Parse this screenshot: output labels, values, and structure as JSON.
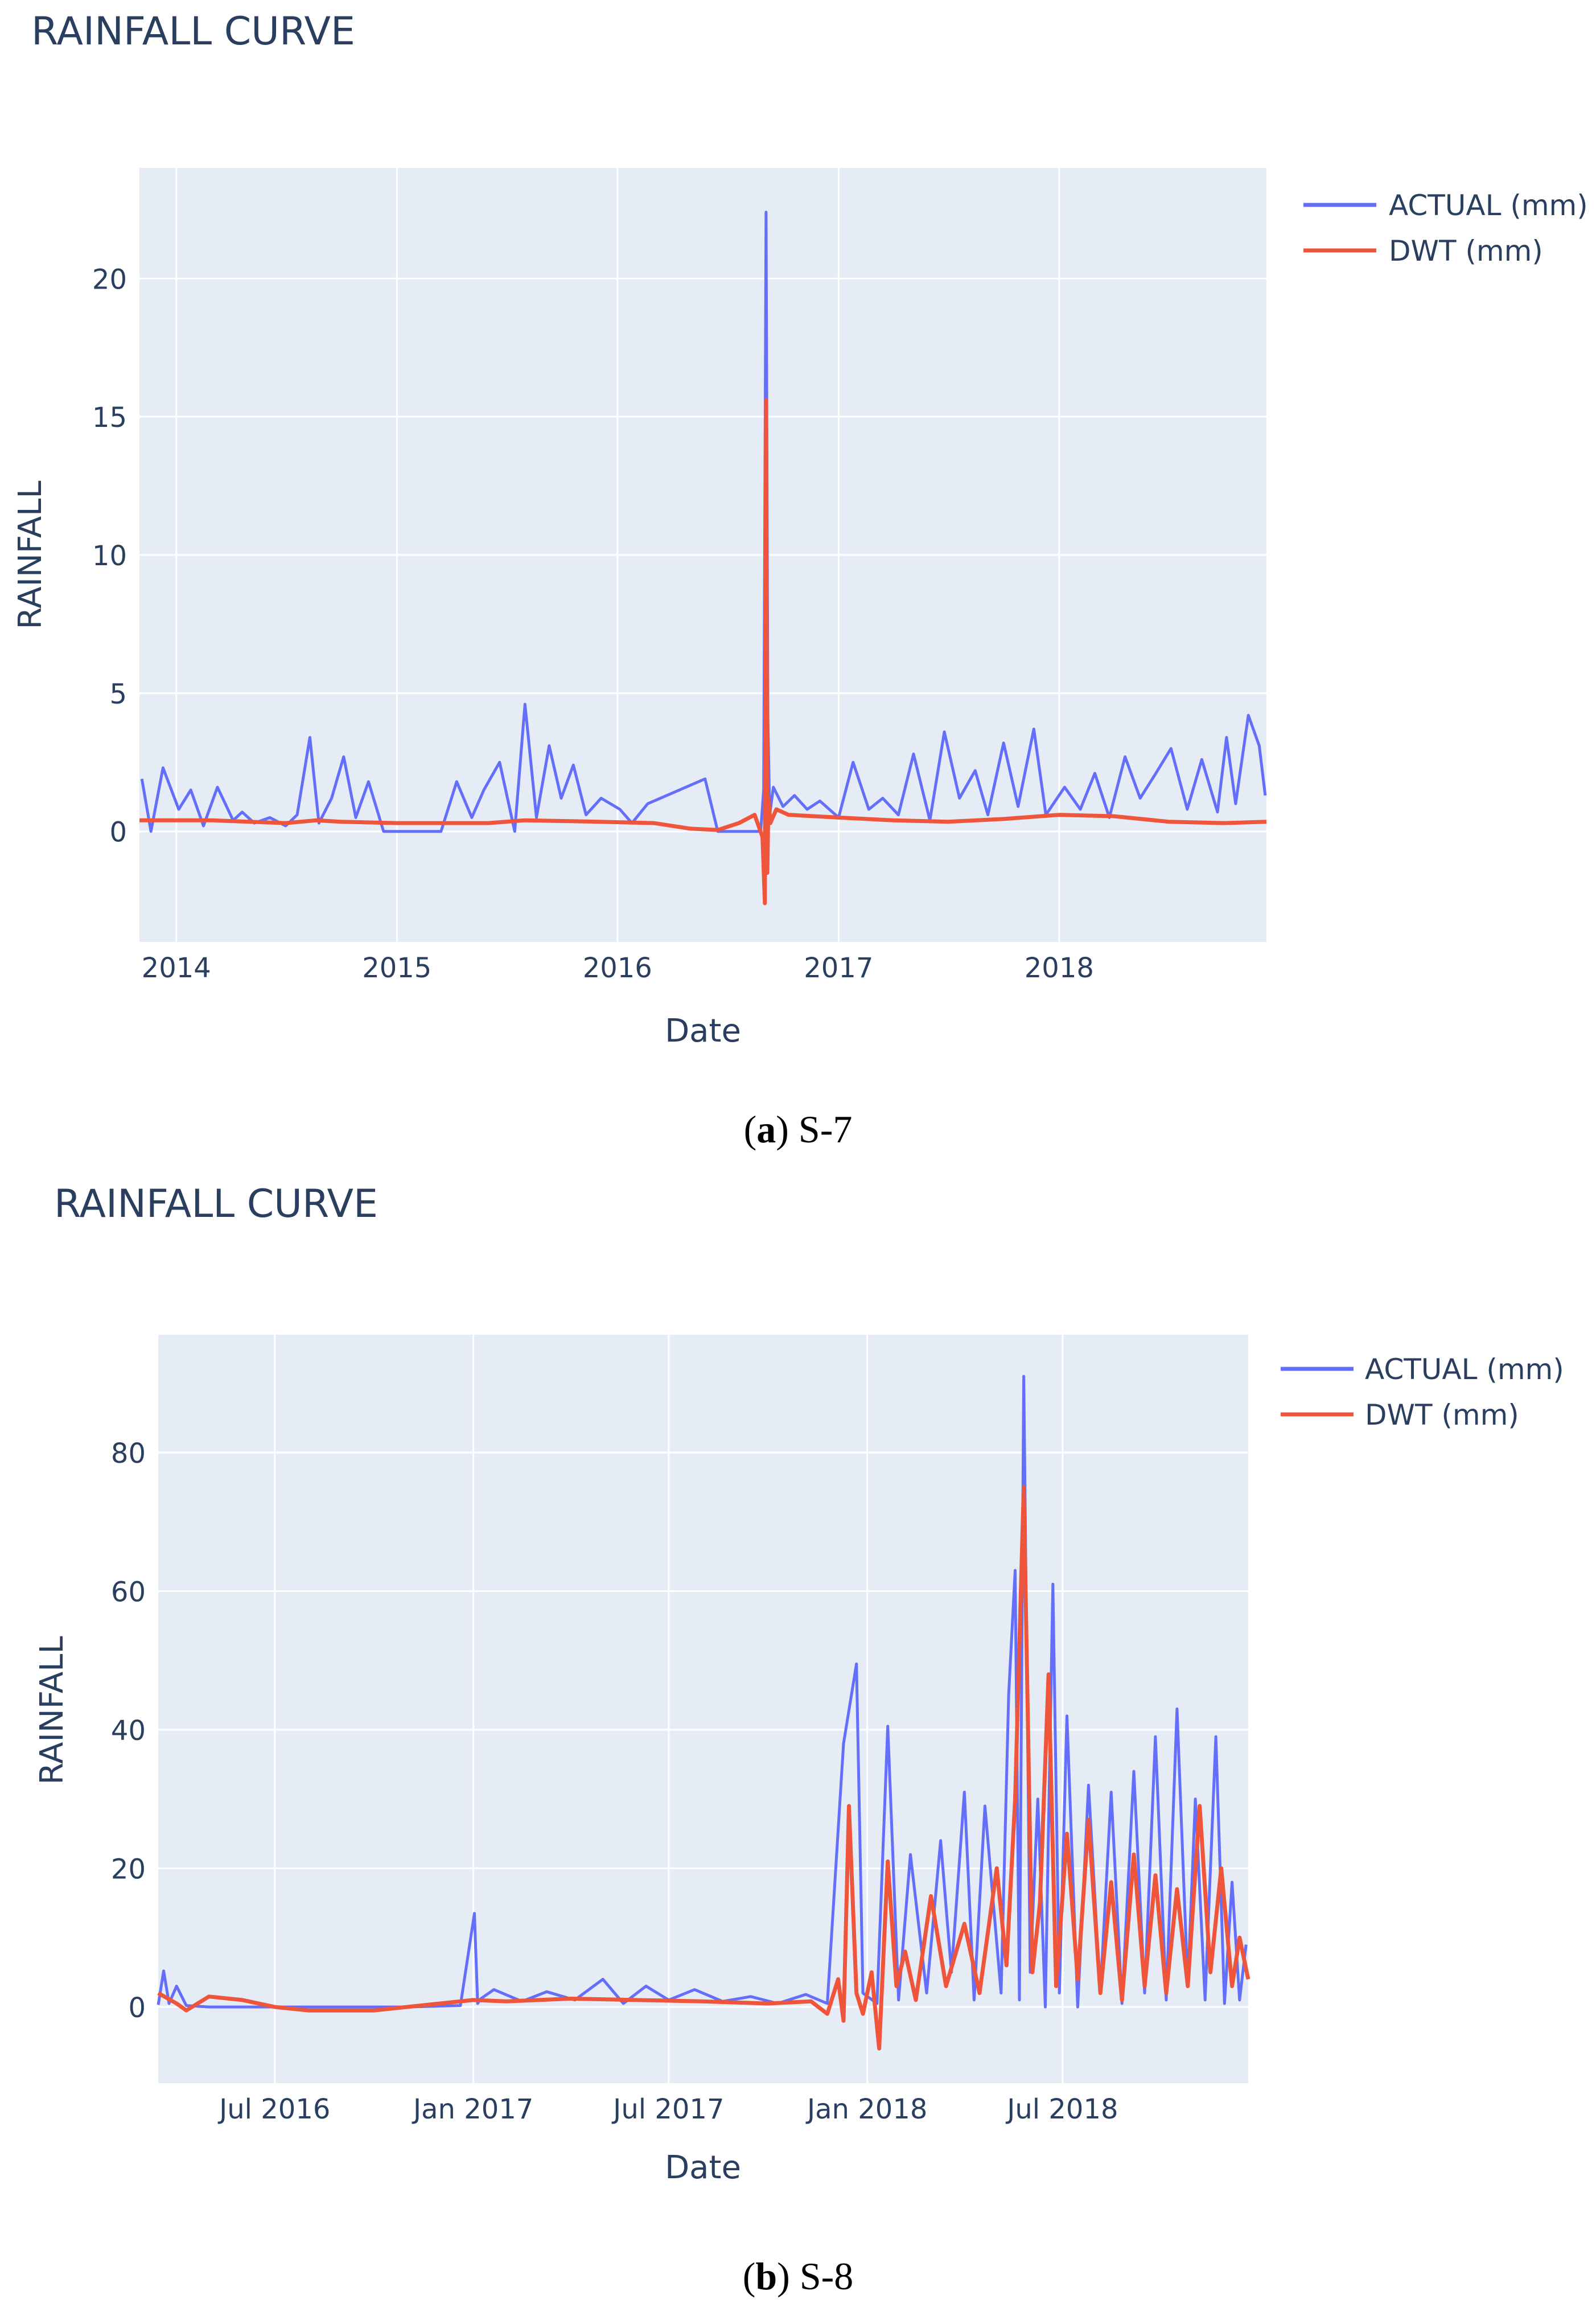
{
  "colors": {
    "actual": "#636efa",
    "dwt": "#ef553b",
    "plot_bg": "#e5ecf6",
    "grid": "#ffffff",
    "text": "#2a3f5f"
  },
  "captions": [
    {
      "letter": "a",
      "label": "S-7"
    },
    {
      "letter": "b",
      "label": "S-8"
    }
  ],
  "chart_data": [
    {
      "type": "line",
      "title": "RAINFALL CURVE",
      "xlabel": "Date",
      "ylabel": "RAINFALL",
      "xlim": [
        "2013-11-01",
        "2018-12-10"
      ],
      "ylim": [
        -4,
        24
      ],
      "x_ticks": [
        {
          "date": "2014-01-01",
          "label": "2014"
        },
        {
          "date": "2015-01-01",
          "label": "2015"
        },
        {
          "date": "2016-01-01",
          "label": "2016"
        },
        {
          "date": "2017-01-01",
          "label": "2017"
        },
        {
          "date": "2018-01-01",
          "label": "2018"
        }
      ],
      "y_ticks": [
        0,
        5,
        10,
        15,
        20
      ],
      "legend": {
        "position": "top-right",
        "entries": [
          "ACTUAL (mm)",
          "DWT (mm)"
        ]
      },
      "series": [
        {
          "name": "ACTUAL (mm)",
          "x": [
            "2013-11-05",
            "2013-11-20",
            "2013-12-10",
            "2014-01-05",
            "2014-01-25",
            "2014-02-15",
            "2014-03-10",
            "2014-04-05",
            "2014-04-20",
            "2014-05-10",
            "2014-06-05",
            "2014-07-01",
            "2014-07-20",
            "2014-08-10",
            "2014-08-25",
            "2014-09-15",
            "2014-10-05",
            "2014-10-25",
            "2014-11-15",
            "2014-12-10",
            "2015-01-20",
            "2015-02-20",
            "2015-03-15",
            "2015-04-10",
            "2015-05-05",
            "2015-05-25",
            "2015-06-20",
            "2015-07-15",
            "2015-08-01",
            "2015-08-20",
            "2015-09-10",
            "2015-09-30",
            "2015-10-20",
            "2015-11-10",
            "2015-12-05",
            "2016-01-05",
            "2016-01-25",
            "2016-02-20",
            "2016-05-25",
            "2016-06-15",
            "2016-08-25",
            "2016-08-30",
            "2016-09-03",
            "2016-09-06",
            "2016-09-09",
            "2016-09-15",
            "2016-10-01",
            "2016-10-20",
            "2016-11-10",
            "2016-12-01",
            "2017-01-01",
            "2017-01-25",
            "2017-02-20",
            "2017-03-15",
            "2017-04-10",
            "2017-05-05",
            "2017-06-01",
            "2017-06-25",
            "2017-07-20",
            "2017-08-15",
            "2017-09-05",
            "2017-10-01",
            "2017-10-25",
            "2017-11-20",
            "2017-12-10",
            "2018-01-10",
            "2018-02-05",
            "2018-03-01",
            "2018-03-25",
            "2018-04-20",
            "2018-05-15",
            "2018-06-10",
            "2018-07-05",
            "2018-08-01",
            "2018-08-25",
            "2018-09-20",
            "2018-10-05",
            "2018-10-20",
            "2018-11-10",
            "2018-11-28",
            "2018-12-08"
          ],
          "values": [
            1.9,
            0.0,
            2.3,
            0.8,
            1.5,
            0.2,
            1.6,
            0.4,
            0.7,
            0.3,
            0.5,
            0.2,
            0.6,
            3.4,
            0.3,
            1.2,
            2.7,
            0.5,
            1.8,
            0.0,
            0.0,
            0.0,
            0.0,
            1.8,
            0.5,
            1.5,
            2.5,
            0.0,
            4.6,
            0.5,
            3.1,
            1.2,
            2.4,
            0.6,
            1.2,
            0.8,
            0.3,
            1.0,
            1.9,
            0.0,
            0.0,
            1.5,
            22.4,
            4.1,
            0.6,
            1.6,
            0.9,
            1.3,
            0.8,
            1.1,
            0.5,
            2.5,
            0.8,
            1.2,
            0.6,
            2.8,
            0.4,
            3.6,
            1.2,
            2.2,
            0.6,
            3.2,
            0.9,
            3.7,
            0.6,
            1.6,
            0.8,
            2.1,
            0.5,
            2.7,
            1.2,
            2.1,
            3.0,
            0.8,
            2.6,
            0.7,
            3.4,
            1.0,
            4.2,
            3.1,
            1.3
          ]
        },
        {
          "name": "DWT (mm)",
          "x": [
            "2013-11-01",
            "2014-03-01",
            "2014-07-01",
            "2014-08-20",
            "2014-10-01",
            "2015-01-01",
            "2015-06-01",
            "2015-08-01",
            "2015-12-01",
            "2016-03-01",
            "2016-05-01",
            "2016-06-15",
            "2016-07-20",
            "2016-08-15",
            "2016-08-28",
            "2016-09-01",
            "2016-09-03",
            "2016-09-05",
            "2016-09-07",
            "2016-09-10",
            "2016-09-20",
            "2016-10-10",
            "2017-01-01",
            "2017-04-01",
            "2017-07-01",
            "2017-10-01",
            "2018-01-01",
            "2018-04-01",
            "2018-07-01",
            "2018-10-01",
            "2018-12-10"
          ],
          "values": [
            0.4,
            0.4,
            0.3,
            0.4,
            0.35,
            0.3,
            0.3,
            0.4,
            0.35,
            0.3,
            0.1,
            0.05,
            0.3,
            0.6,
            -0.2,
            -2.6,
            15.6,
            -1.5,
            1.2,
            0.3,
            0.8,
            0.6,
            0.5,
            0.4,
            0.35,
            0.45,
            0.6,
            0.55,
            0.35,
            0.3,
            0.35
          ]
        }
      ]
    },
    {
      "type": "line",
      "title": "RAINFALL CURVE",
      "xlabel": "Date",
      "ylabel": "RAINFALL",
      "xlim": [
        "2016-03-15",
        "2018-12-20"
      ],
      "ylim": [
        -11,
        97
      ],
      "x_ticks": [
        {
          "date": "2016-07-01",
          "label": "Jul 2016"
        },
        {
          "date": "2017-01-01",
          "label": "Jan 2017"
        },
        {
          "date": "2017-07-01",
          "label": "Jul 2017"
        },
        {
          "date": "2018-01-01",
          "label": "Jan 2018"
        },
        {
          "date": "2018-07-01",
          "label": "Jul 2018"
        }
      ],
      "y_ticks": [
        0,
        20,
        40,
        60,
        80
      ],
      "legend": {
        "position": "top-right",
        "entries": [
          "ACTUAL (mm)",
          "DWT (mm)"
        ]
      },
      "series": [
        {
          "name": "ACTUAL (mm)",
          "x": [
            "2016-03-15",
            "2016-03-20",
            "2016-03-25",
            "2016-04-01",
            "2016-04-10",
            "2016-05-01",
            "2016-08-01",
            "2016-11-01",
            "2016-12-20",
            "2017-01-02",
            "2017-01-05",
            "2017-01-08",
            "2017-01-20",
            "2017-02-15",
            "2017-03-10",
            "2017-04-05",
            "2017-05-01",
            "2017-05-20",
            "2017-06-10",
            "2017-07-01",
            "2017-07-25",
            "2017-08-20",
            "2017-09-15",
            "2017-10-10",
            "2017-11-05",
            "2017-11-25",
            "2017-12-10",
            "2017-12-22",
            "2017-12-28",
            "2018-01-10",
            "2018-01-20",
            "2018-01-30",
            "2018-02-10",
            "2018-02-25",
            "2018-03-10",
            "2018-03-20",
            "2018-04-01",
            "2018-04-10",
            "2018-04-20",
            "2018-05-05",
            "2018-05-12",
            "2018-05-18",
            "2018-05-22",
            "2018-05-26",
            "2018-06-01",
            "2018-06-08",
            "2018-06-15",
            "2018-06-22",
            "2018-06-28",
            "2018-07-05",
            "2018-07-15",
            "2018-07-25",
            "2018-08-05",
            "2018-08-15",
            "2018-08-25",
            "2018-09-05",
            "2018-09-15",
            "2018-09-25",
            "2018-10-05",
            "2018-10-15",
            "2018-10-25",
            "2018-11-01",
            "2018-11-10",
            "2018-11-20",
            "2018-11-28",
            "2018-12-05",
            "2018-12-12",
            "2018-12-18"
          ],
          "values": [
            0.3,
            5.2,
            0.5,
            3.0,
            0.2,
            0.0,
            0.0,
            0.0,
            0.2,
            13.5,
            0.5,
            1.2,
            2.5,
            0.8,
            2.2,
            1.0,
            4.0,
            0.5,
            3.0,
            1.0,
            2.5,
            0.8,
            1.5,
            0.5,
            1.8,
            0.5,
            38.0,
            49.5,
            2.0,
            0.5,
            40.5,
            1.0,
            22.0,
            2.0,
            24.0,
            5.0,
            31.0,
            1.0,
            29.0,
            2.0,
            45.0,
            63.0,
            1.0,
            91.0,
            5.0,
            30.0,
            0.0,
            61.0,
            2.0,
            42.0,
            0.0,
            32.0,
            2.0,
            31.0,
            0.5,
            34.0,
            2.0,
            39.0,
            1.0,
            43.0,
            3.0,
            30.0,
            1.0,
            39.0,
            0.5,
            18.0,
            1.0,
            9.0
          ]
        },
        {
          "name": "DWT (mm)",
          "x": [
            "2016-03-15",
            "2016-04-01",
            "2016-04-10",
            "2016-05-01",
            "2016-06-01",
            "2016-07-01",
            "2016-08-01",
            "2016-10-01",
            "2016-12-01",
            "2017-01-01",
            "2017-02-01",
            "2017-04-01",
            "2017-06-01",
            "2017-08-01",
            "2017-10-01",
            "2017-11-10",
            "2017-11-25",
            "2017-12-05",
            "2017-12-10",
            "2017-12-15",
            "2017-12-22",
            "2017-12-28",
            "2018-01-05",
            "2018-01-12",
            "2018-01-20",
            "2018-01-28",
            "2018-02-05",
            "2018-02-15",
            "2018-03-01",
            "2018-03-15",
            "2018-04-01",
            "2018-04-15",
            "2018-05-01",
            "2018-05-10",
            "2018-05-18",
            "2018-05-26",
            "2018-06-03",
            "2018-06-10",
            "2018-06-18",
            "2018-06-25",
            "2018-07-05",
            "2018-07-15",
            "2018-07-25",
            "2018-08-05",
            "2018-08-15",
            "2018-08-25",
            "2018-09-05",
            "2018-09-15",
            "2018-09-25",
            "2018-10-05",
            "2018-10-15",
            "2018-10-25",
            "2018-11-05",
            "2018-11-15",
            "2018-11-25",
            "2018-12-05",
            "2018-12-12",
            "2018-12-20"
          ],
          "values": [
            2.0,
            0.5,
            -0.5,
            1.5,
            1.0,
            0.0,
            -0.5,
            -0.5,
            0.5,
            1.0,
            0.8,
            1.2,
            1.0,
            0.8,
            0.5,
            0.8,
            -1.0,
            4.0,
            -2.0,
            29.0,
            2.0,
            -1.0,
            5.0,
            -6.0,
            21.0,
            3.0,
            8.0,
            1.0,
            16.0,
            3.0,
            12.0,
            2.0,
            20.0,
            6.0,
            30.0,
            75.0,
            5.0,
            15.0,
            48.0,
            3.0,
            25.0,
            4.0,
            27.0,
            2.0,
            18.0,
            1.0,
            22.0,
            3.0,
            19.0,
            2.0,
            17.0,
            3.0,
            29.0,
            5.0,
            20.0,
            3.0,
            10.0,
            4.0
          ]
        }
      ]
    }
  ]
}
